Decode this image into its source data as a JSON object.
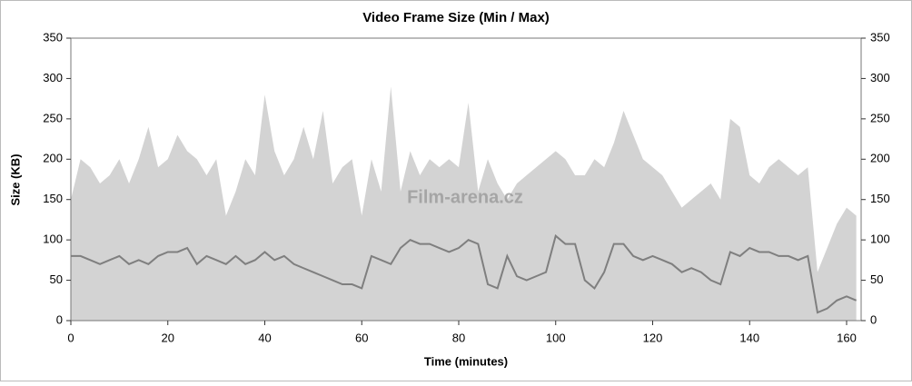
{
  "chart_data": {
    "type": "area-line",
    "title": "Video Frame Size (Min / Max)",
    "x_label": "Time (minutes)",
    "y_label": "Size (KB)",
    "annotation": "Film-arena.cz",
    "xlim": [
      0,
      163
    ],
    "xticks": [
      0,
      20,
      40,
      60,
      80,
      100,
      120,
      140,
      160
    ],
    "ylim": [
      0,
      350
    ],
    "yticks": [
      0,
      50,
      100,
      150,
      200,
      250,
      300,
      350
    ],
    "y2lim": [
      0,
      350
    ],
    "y2ticks": [
      0,
      50,
      100,
      150,
      200,
      250,
      300,
      350
    ],
    "grid": false,
    "x": [
      0,
      2,
      4,
      6,
      8,
      10,
      12,
      14,
      16,
      18,
      20,
      22,
      24,
      26,
      28,
      30,
      32,
      34,
      36,
      38,
      40,
      42,
      44,
      46,
      48,
      50,
      52,
      54,
      56,
      58,
      60,
      62,
      64,
      66,
      68,
      70,
      72,
      74,
      76,
      78,
      80,
      82,
      84,
      86,
      88,
      90,
      92,
      94,
      96,
      98,
      100,
      102,
      104,
      106,
      108,
      110,
      112,
      114,
      116,
      118,
      120,
      122,
      124,
      126,
      128,
      130,
      132,
      134,
      136,
      138,
      140,
      142,
      144,
      146,
      148,
      150,
      152,
      154,
      156,
      158,
      160,
      162
    ],
    "series": [
      {
        "color": "#d3d3d3",
        "style": "area",
        "values": [
          150,
          200,
          190,
          170,
          180,
          200,
          170,
          200,
          240,
          190,
          200,
          230,
          210,
          200,
          180,
          200,
          130,
          160,
          200,
          180,
          280,
          210,
          180,
          200,
          240,
          200,
          260,
          170,
          190,
          200,
          130,
          200,
          160,
          290,
          160,
          210,
          180,
          200,
          190,
          200,
          190,
          270,
          160,
          200,
          170,
          150,
          170,
          180,
          190,
          200,
          210,
          200,
          180,
          180,
          200,
          190,
          220,
          260,
          230,
          200,
          190,
          180,
          160,
          140,
          150,
          160,
          170,
          150,
          250,
          240,
          180,
          170,
          190,
          200,
          190,
          180,
          190,
          60,
          90,
          120,
          140,
          130
        ]
      },
      {
        "color": "#7f7f7f",
        "style": "line",
        "values": [
          80,
          80,
          75,
          70,
          75,
          80,
          70,
          75,
          70,
          80,
          85,
          85,
          90,
          70,
          80,
          75,
          70,
          80,
          70,
          75,
          85,
          75,
          80,
          70,
          65,
          60,
          55,
          50,
          45,
          45,
          40,
          80,
          75,
          70,
          90,
          100,
          95,
          95,
          90,
          85,
          90,
          100,
          95,
          45,
          40,
          80,
          55,
          50,
          55,
          60,
          105,
          95,
          95,
          50,
          40,
          60,
          95,
          95,
          80,
          75,
          80,
          75,
          70,
          60,
          65,
          60,
          50,
          45,
          85,
          80,
          90,
          85,
          85,
          80,
          80,
          75,
          80,
          10,
          15,
          25,
          30,
          25
        ]
      }
    ]
  }
}
